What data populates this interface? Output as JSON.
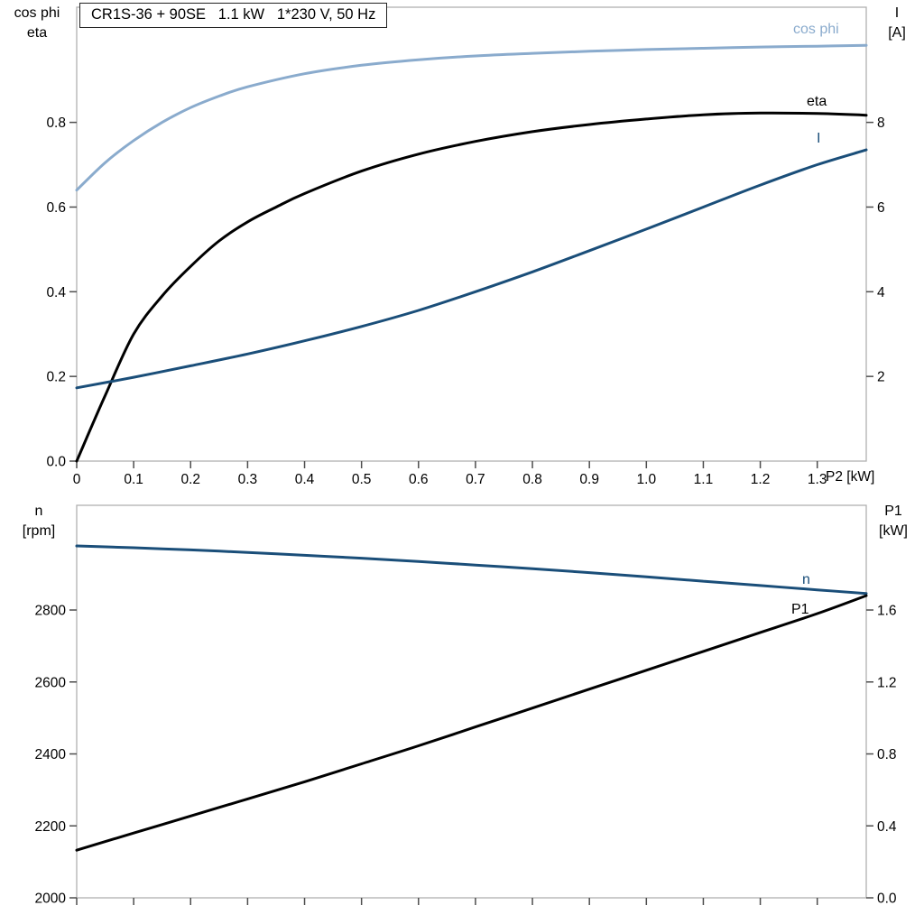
{
  "header": {
    "title": "CR1S-36 + 90SE   1.1 kW   1*230 V, 50 Hz"
  },
  "colors": {
    "light_blue": "#8aabcd",
    "dark_blue": "#1a4e79",
    "black": "#000000",
    "frame": "#b0b0b0",
    "tick": "#4d4d4d",
    "text": "#000000",
    "background": "#ffffff"
  },
  "chart_data": [
    {
      "id": "top",
      "type": "line",
      "title": "CR1S-36 + 90SE   1.1 kW   1*230 V, 50 Hz",
      "grid": false,
      "legend_position": "inline-right",
      "x_axis": {
        "label": "P2 [kW]",
        "min": 0,
        "max": 1.386,
        "ticks": [
          0,
          0.1,
          0.2,
          0.3,
          0.4,
          0.5,
          0.6,
          0.7,
          0.8,
          0.9,
          1.0,
          1.1,
          1.2,
          1.3
        ],
        "tick_labels": [
          "0",
          "0.1",
          "0.2",
          "0.3",
          "0.4",
          "0.5",
          "0.6",
          "0.7",
          "0.8",
          "0.9",
          "1.0",
          "1.1",
          "1.2",
          "1.3"
        ]
      },
      "left_axis": {
        "title": [
          "cos phi",
          "eta"
        ],
        "min": 0,
        "max": 1.072,
        "ticks": [
          0.0,
          0.2,
          0.4,
          0.6,
          0.8
        ],
        "tick_labels": [
          "0.0",
          "0.2",
          "0.4",
          "0.6",
          "0.8"
        ]
      },
      "right_axis": {
        "title": [
          "I",
          "[A]"
        ],
        "min": 0,
        "max": 10.72,
        "ticks": [
          2,
          4,
          6,
          8
        ],
        "tick_labels": [
          "2",
          "4",
          "6",
          "8"
        ]
      },
      "series": [
        {
          "name": "cos phi",
          "axis": "left",
          "color": "#8aabcd",
          "x": [
            0,
            0.05,
            0.1,
            0.15,
            0.2,
            0.25,
            0.3,
            0.4,
            0.5,
            0.6,
            0.7,
            0.8,
            0.9,
            1.0,
            1.1,
            1.2,
            1.3,
            1.386
          ],
          "y": [
            0.64,
            0.705,
            0.757,
            0.8,
            0.835,
            0.862,
            0.884,
            0.915,
            0.935,
            0.948,
            0.957,
            0.963,
            0.968,
            0.972,
            0.975,
            0.978,
            0.98,
            0.982
          ]
        },
        {
          "name": "eta",
          "axis": "left",
          "color": "#000000",
          "x": [
            0,
            0.05,
            0.1,
            0.15,
            0.2,
            0.25,
            0.3,
            0.35,
            0.4,
            0.5,
            0.6,
            0.7,
            0.8,
            0.9,
            1.0,
            1.1,
            1.2,
            1.3,
            1.386
          ],
          "y": [
            0,
            0.155,
            0.3,
            0.39,
            0.46,
            0.52,
            0.565,
            0.6,
            0.632,
            0.685,
            0.725,
            0.755,
            0.778,
            0.795,
            0.808,
            0.818,
            0.822,
            0.821,
            0.817
          ]
        },
        {
          "name": "I",
          "axis": "right",
          "color": "#1a4e79",
          "x": [
            0,
            0.1,
            0.2,
            0.3,
            0.4,
            0.5,
            0.6,
            0.7,
            0.8,
            0.9,
            1.0,
            1.1,
            1.2,
            1.3,
            1.386
          ],
          "y": [
            1.73,
            1.98,
            2.25,
            2.53,
            2.84,
            3.18,
            3.56,
            4.0,
            4.47,
            4.97,
            5.48,
            6.0,
            6.52,
            7.0,
            7.35
          ]
        }
      ]
    },
    {
      "id": "bottom",
      "type": "line",
      "title": "",
      "grid": false,
      "legend_position": "inline-right",
      "x_axis": {
        "label": "",
        "min": 0,
        "max": 1.386,
        "ticks": [
          0,
          0.1,
          0.2,
          0.3,
          0.4,
          0.5,
          0.6,
          0.7,
          0.8,
          0.9,
          1.0,
          1.1,
          1.2,
          1.3
        ],
        "tick_labels": []
      },
      "left_axis": {
        "title": [
          "n",
          "[rpm]"
        ],
        "min": 2000,
        "max": 3091,
        "ticks": [
          2000,
          2200,
          2400,
          2600,
          2800
        ],
        "tick_labels": [
          "2000",
          "2200",
          "2400",
          "2600",
          "2800"
        ]
      },
      "right_axis": {
        "title": [
          "P1",
          "[kW]"
        ],
        "min": 0,
        "max": 2.182,
        "ticks": [
          0.0,
          0.4,
          0.8,
          1.2,
          1.6
        ],
        "tick_labels": [
          "0.0",
          "0.4",
          "0.8",
          "1.2",
          "1.6"
        ]
      },
      "series": [
        {
          "name": "n",
          "axis": "left",
          "color": "#1a4e79",
          "x": [
            0,
            0.1,
            0.2,
            0.3,
            0.4,
            0.5,
            0.6,
            0.7,
            0.8,
            0.9,
            1.0,
            1.1,
            1.2,
            1.3,
            1.386
          ],
          "y": [
            2978,
            2973,
            2967,
            2960,
            2952,
            2944,
            2935,
            2925,
            2915,
            2904,
            2892,
            2880,
            2868,
            2856,
            2846
          ]
        },
        {
          "name": "P1",
          "axis": "right",
          "color": "#000000",
          "x": [
            0,
            0.1,
            0.2,
            0.3,
            0.4,
            0.5,
            0.6,
            0.7,
            0.8,
            0.9,
            1.0,
            1.1,
            1.2,
            1.3,
            1.386
          ],
          "y": [
            0.265,
            0.36,
            0.455,
            0.55,
            0.645,
            0.745,
            0.845,
            0.95,
            1.055,
            1.16,
            1.265,
            1.37,
            1.475,
            1.58,
            1.68
          ]
        }
      ]
    }
  ]
}
